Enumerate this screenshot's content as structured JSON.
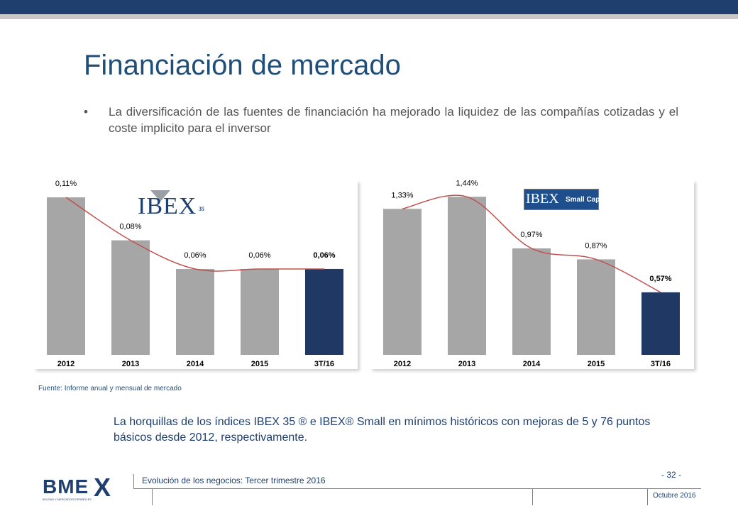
{
  "title": "Financiación de mercado",
  "bullet": {
    "marker": "•",
    "text": "La diversificación de las fuentes de financiación ha mejorado la liquidez de las compañías cotizadas y el coste implicito para el inversor"
  },
  "logos": {
    "ibex35_main": "IBEX",
    "ibex35_sup": "35",
    "small_main": "IBEX",
    "small_sub": "Small Cap"
  },
  "chart_data": [
    {
      "type": "bar",
      "categories": [
        "2012",
        "2013",
        "2014",
        "2015",
        "3T/16"
      ],
      "values": [
        0.11,
        0.08,
        0.06,
        0.06,
        0.06
      ],
      "labels": [
        "0,11%",
        "0,08%",
        "0,06%",
        "0,06%",
        "0,06%"
      ],
      "ylim": [
        0,
        0.115
      ],
      "bar_colors": [
        "#a6a6a6",
        "#a6a6a6",
        "#a6a6a6",
        "#a6a6a6",
        "#1f3864"
      ],
      "trend_line_color": "#c0504d"
    },
    {
      "type": "bar",
      "categories": [
        "2012",
        "2013",
        "2014",
        "2015",
        "3T/16"
      ],
      "values": [
        1.33,
        1.44,
        0.97,
        0.87,
        0.57
      ],
      "labels": [
        "1,33%",
        "1,44%",
        "0,97%",
        "0,87%",
        "0,57%"
      ],
      "ylim": [
        0,
        1.5
      ],
      "bar_colors": [
        "#a6a6a6",
        "#a6a6a6",
        "#a6a6a6",
        "#a6a6a6",
        "#1f3864"
      ],
      "trend_line_color": "#c0504d"
    }
  ],
  "source": "Fuente: Informe anual y mensual de mercado",
  "conclusion": "La horquillas de los índices IBEX 35 ® e IBEX® Small en mínimos históricos con mejoras de 5 y 76 puntos básicos desde 2012, respectivamente.",
  "footer": {
    "logo_text": "BME",
    "logo_x": "X",
    "logo_sub": "BOLSAS Y MERCADOS ESPAÑOLES",
    "text": "Evolución de los negocios: Tercer trimestre 2016",
    "page": "- 32 -",
    "date": "Octubre 2016"
  }
}
